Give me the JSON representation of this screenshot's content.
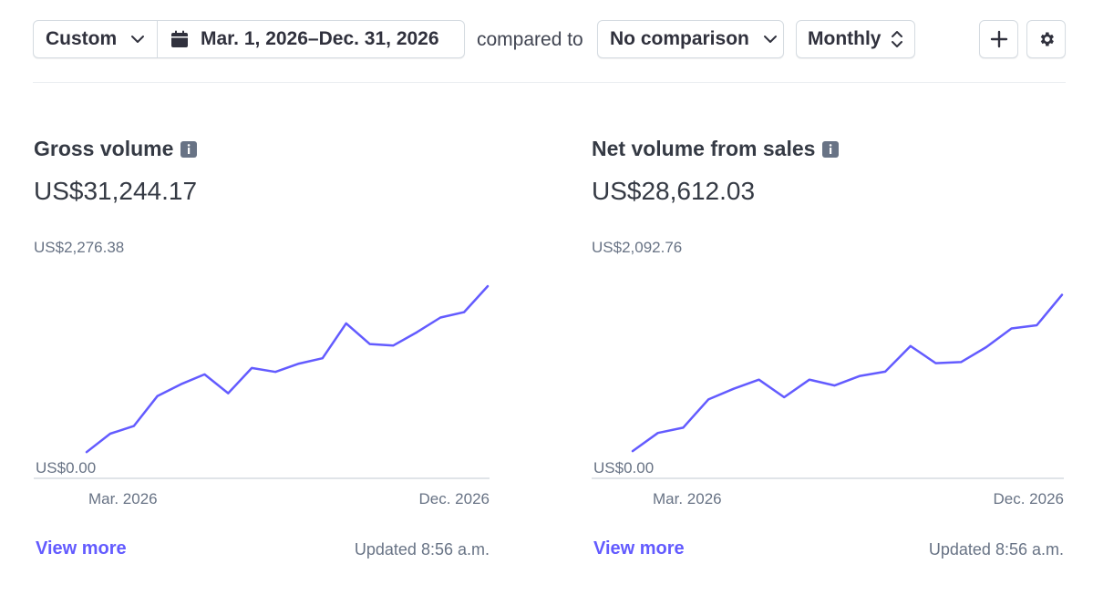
{
  "toolbar": {
    "range_label": "Custom",
    "date_range": "Mar. 1, 2026–Dec. 31, 2026",
    "compared_to": "compared to",
    "comparison": "No comparison",
    "interval": "Monthly",
    "icons": [
      "chevron-down-icon",
      "calendar-icon",
      "up-down-chevron-icon",
      "plus-icon",
      "gear-icon"
    ]
  },
  "cards": [
    {
      "title": "Gross volume",
      "value": "US$31,244.17",
      "view_more": "View more",
      "updated": "Updated 8:56 a.m.",
      "chart_data": {
        "type": "line",
        "title": "",
        "x_start_label": "Mar. 2026",
        "x_end_label": "Dec. 2026",
        "y_max_label": "US$2,276.38",
        "y_min_label": "US$0.00",
        "ylim": [
          0,
          2276.38
        ],
        "series": [
          {
            "values": [
              268,
              455,
              533,
              838,
              960,
              1060,
              868,
              1125,
              1085,
              1170,
              1225,
              1580,
              1370,
              1355,
              1490,
              1640,
              1695,
              1960
            ]
          }
        ],
        "color": "#635bff",
        "grid": false
      }
    },
    {
      "title": "Net volume from sales",
      "value": "US$28,612.03",
      "view_more": "View more",
      "updated": "Updated 8:56 a.m.",
      "chart_data": {
        "type": "line",
        "title": "",
        "x_start_label": "Mar. 2026",
        "x_end_label": "Dec. 2026",
        "y_max_label": "US$2,092.76",
        "y_min_label": "US$0.00",
        "ylim": [
          0,
          2092.76
        ],
        "series": [
          {
            "values": [
              255,
              425,
              475,
              740,
              840,
              925,
              760,
              925,
              870,
              960,
              1000,
              1240,
              1080,
              1090,
              1230,
              1405,
              1435,
              1720
            ]
          }
        ],
        "color": "#635bff",
        "grid": false
      }
    }
  ]
}
